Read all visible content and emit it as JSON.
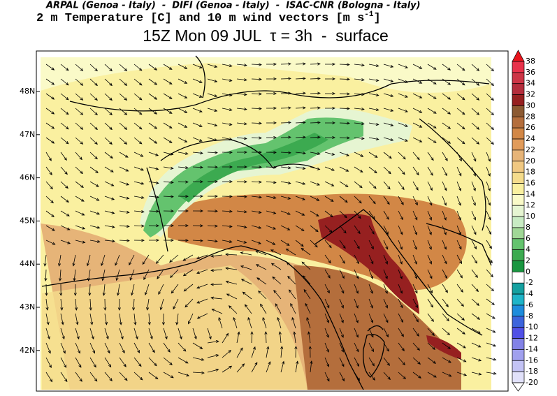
{
  "header": {
    "credits": "ARPAL (Genoa - Italy)  -  DIFI (Genoa - Italy)  -  ISAC-CNR (Bologna - Italy)",
    "subtitle": "2 m Temperature [C] and 10 m wind vectors [m s",
    "subtitle_exponent": "-1",
    "subtitle_end": "]",
    "title": "15Z Mon 09 JUL  τ = 3h  -  surface"
  },
  "map": {
    "lat_labels": [
      "48N",
      "47N",
      "46N",
      "45N",
      "44N",
      "43N",
      "42N"
    ]
  },
  "colorbar": {
    "levels": [
      38,
      36,
      34,
      32,
      30,
      28,
      26,
      24,
      22,
      20,
      18,
      16,
      14,
      12,
      10,
      8,
      6,
      4,
      2,
      0,
      -2,
      -4,
      -6,
      -8,
      -10,
      -12,
      -14,
      -16,
      -18,
      -20
    ],
    "colors": [
      "#e8141c",
      "#e8324b",
      "#cd3546",
      "#b42d3c",
      "#962020",
      "#8c5a32",
      "#b46e3c",
      "#d28746",
      "#e19b5a",
      "#e6b478",
      "#f0c882",
      "#f5dc8c",
      "#faf0a0",
      "#fafac8",
      "#e6f5d2",
      "#c8ebc3",
      "#a0d796",
      "#64c36e",
      "#3caa50",
      "#199640",
      "#ffffff",
      "#14a0a0",
      "#1eb4c8",
      "#1e8cdc",
      "#3c64dc",
      "#5050e6",
      "#8282e6",
      "#a0a0ee",
      "#c3c3f5",
      "#e1e1fa",
      "#ffffff"
    ]
  }
}
